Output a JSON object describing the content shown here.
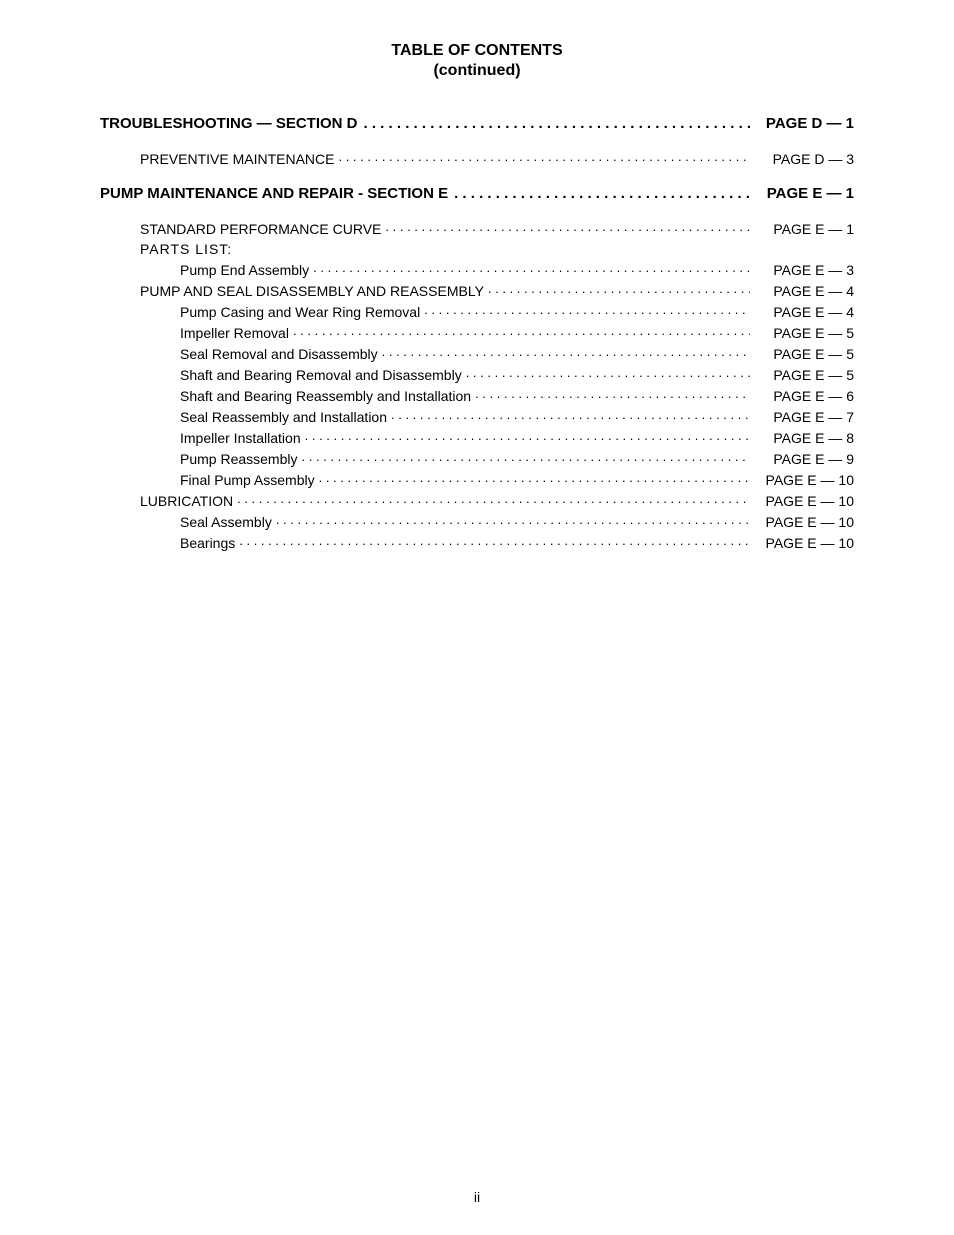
{
  "header": {
    "title": "TABLE OF CONTENTS",
    "subtitle": "(continued)"
  },
  "sections": [
    {
      "label": "TROUBLESHOOTING — SECTION D",
      "page": "PAGE D — 1",
      "items": [
        {
          "label": "PREVENTIVE MAINTENANCE",
          "page": "PAGE D — 3",
          "indent": 1
        }
      ]
    },
    {
      "label": "PUMP MAINTENANCE AND REPAIR - SECTION E",
      "page": "PAGE E — 1",
      "items": [
        {
          "label": "STANDARD PERFORMANCE CURVE",
          "page": "PAGE E — 1",
          "indent": 1
        },
        {
          "label": "PARTS  LIST:",
          "page": "",
          "indent": 1,
          "noDots": true
        },
        {
          "label": "Pump End Assembly",
          "page": "PAGE E — 3",
          "indent": 2
        },
        {
          "label": "PUMP AND SEAL DISASSEMBLY AND REASSEMBLY",
          "page": "PAGE E — 4",
          "indent": 1
        },
        {
          "label": "Pump Casing and Wear Ring Removal",
          "page": "PAGE E — 4",
          "indent": 2
        },
        {
          "label": "Impeller Removal",
          "page": "PAGE E — 5",
          "indent": 2
        },
        {
          "label": "Seal Removal and Disassembly",
          "page": "PAGE E — 5",
          "indent": 2
        },
        {
          "label": "Shaft and Bearing Removal and Disassembly",
          "page": "PAGE E — 5",
          "indent": 2
        },
        {
          "label": "Shaft and Bearing Reassembly and Installation",
          "page": "PAGE E — 6",
          "indent": 2
        },
        {
          "label": "Seal Reassembly and Installation",
          "page": "PAGE E — 7",
          "indent": 2
        },
        {
          "label": "Impeller Installation",
          "page": "PAGE E — 8",
          "indent": 2
        },
        {
          "label": "Pump Reassembly",
          "page": "PAGE E — 9",
          "indent": 2
        },
        {
          "label": "Final Pump Assembly",
          "page": "PAGE E — 10",
          "indent": 2
        },
        {
          "label": "LUBRICATION",
          "page": "PAGE E — 10",
          "indent": 1
        },
        {
          "label": "Seal Assembly",
          "page": "PAGE E — 10",
          "indent": 2
        },
        {
          "label": "Bearings",
          "page": "PAGE E — 10",
          "indent": 2
        }
      ]
    }
  ],
  "pageNumber": "ii"
}
